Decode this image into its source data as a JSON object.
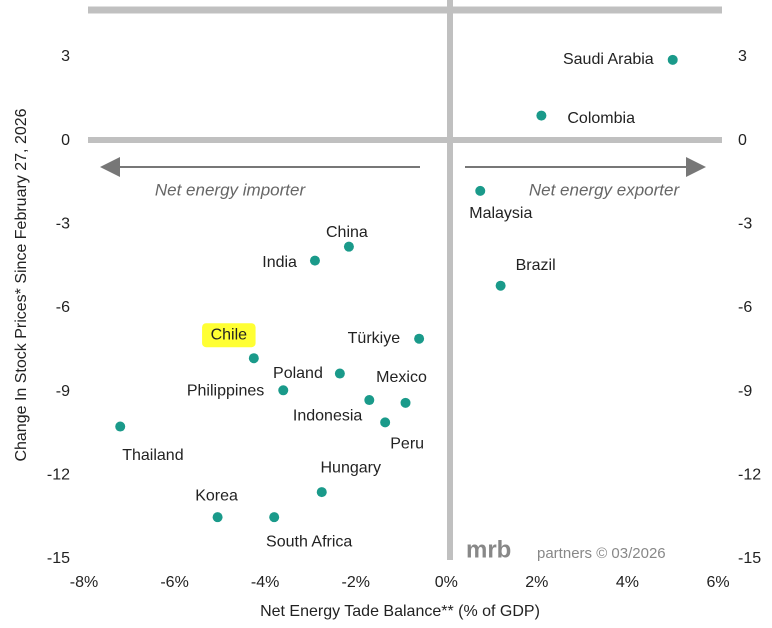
{
  "chart_data": {
    "type": "scatter",
    "x_label": "Net Energy Tade Balance** (% of GDP)",
    "y_label": "Change In Stock Prices* Since February 27, 2026",
    "labels": [
      "Saudi Arabia",
      "Colombia",
      "Malaysia",
      "Brazil",
      "China",
      "India",
      "Türkiye",
      "Chile",
      "Poland",
      "Philippines",
      "Mexico",
      "Indonesia",
      "Peru",
      "Thailand",
      "Hungary",
      "Korea",
      "South Africa"
    ],
    "x": [
      5.0,
      2.1,
      0.75,
      1.2,
      -2.15,
      -2.9,
      -0.6,
      -4.25,
      -2.35,
      -3.6,
      -0.9,
      -1.7,
      -1.35,
      -7.2,
      -2.75,
      -5.05,
      -3.8
    ],
    "y": [
      2.9,
      0.9,
      -1.8,
      -5.2,
      -3.8,
      -4.3,
      -7.1,
      -7.8,
      -8.35,
      -8.95,
      -9.4,
      -9.3,
      -10.1,
      -10.25,
      -12.6,
      -13.5,
      -13.5
    ],
    "color": "#1a9a8a",
    "highlight": "Chile",
    "highlight_color": "#ffff33",
    "annotations": [
      "Net energy importer",
      "Net energy exporter"
    ],
    "source": {
      "brand": "mrb",
      "text": "partners © 03/2026"
    },
    "xlim": [
      -8,
      6
    ],
    "xticks": [
      {
        "value": -8,
        "label": "-8%"
      },
      {
        "value": -6,
        "label": "-6%"
      },
      {
        "value": -4,
        "label": "-4%"
      },
      {
        "value": -2,
        "label": "-2%"
      },
      {
        "value": 0,
        "label": "0%"
      },
      {
        "value": 2,
        "label": "2%"
      },
      {
        "value": 4,
        "label": "4%"
      },
      {
        "value": 6,
        "label": "6%"
      }
    ],
    "ylim": [
      -15,
      4.5
    ],
    "yticks": [
      3,
      0,
      -3,
      -6,
      -9,
      -12,
      -15
    ]
  }
}
